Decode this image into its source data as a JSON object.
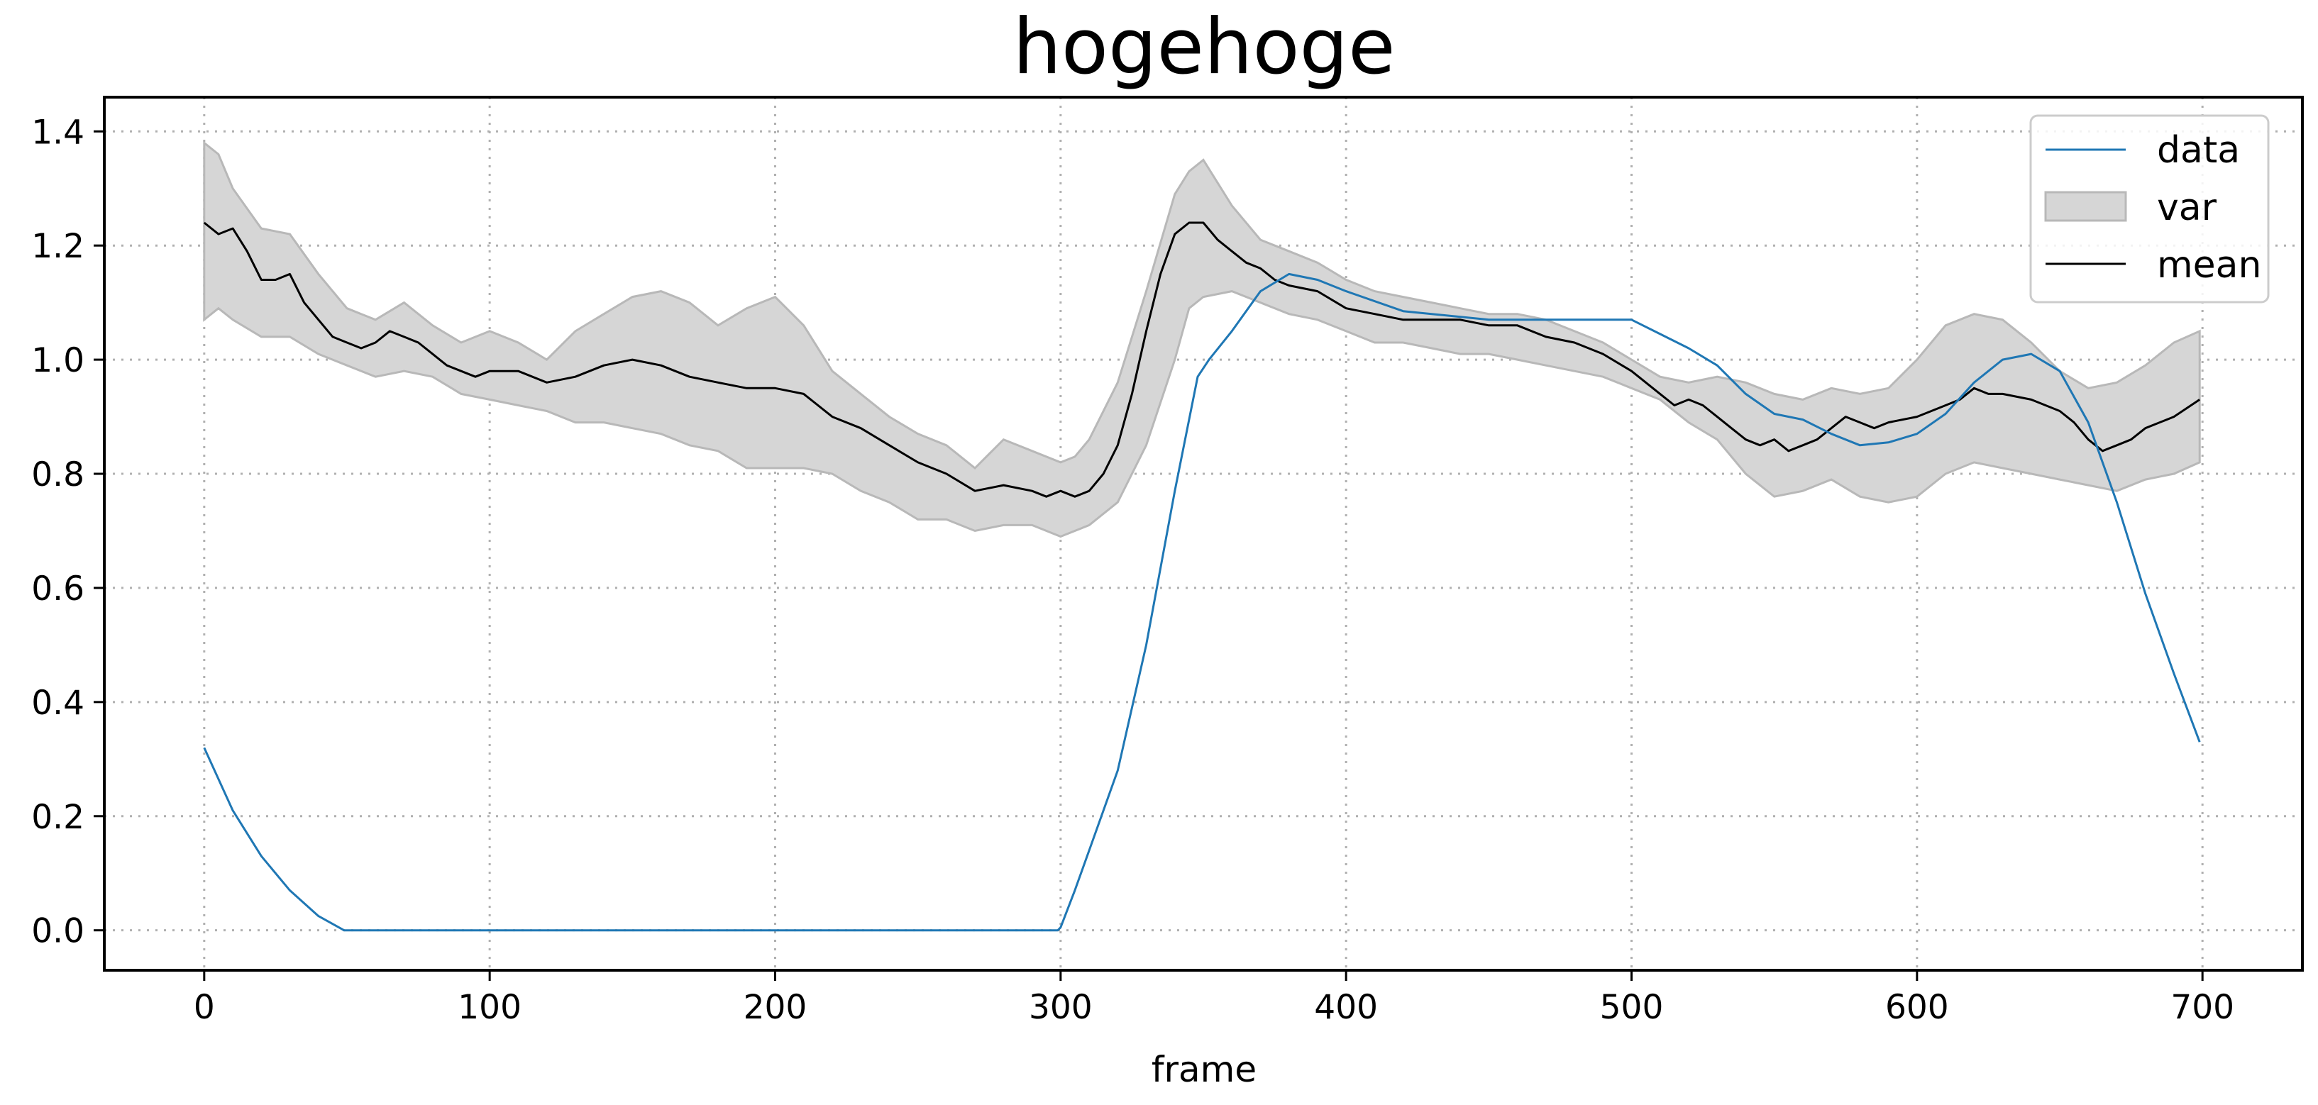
{
  "chart_data": {
    "type": "line",
    "title": "hogehoge",
    "xlabel": "frame",
    "ylabel": "",
    "xlim": [
      -35,
      735
    ],
    "ylim": [
      -0.07,
      1.46
    ],
    "xticks": [
      0,
      100,
      200,
      300,
      400,
      500,
      600,
      700
    ],
    "yticks": [
      0.0,
      0.2,
      0.4,
      0.6,
      0.8,
      1.0,
      1.2,
      1.4
    ],
    "xtick_labels": [
      "0",
      "100",
      "200",
      "300",
      "400",
      "500",
      "600",
      "700"
    ],
    "ytick_labels": [
      "0.0",
      "0.2",
      "0.4",
      "0.6",
      "0.8",
      "1.0",
      "1.2",
      "1.4"
    ],
    "grid": true,
    "legend_position": "top-right",
    "legend": [
      "data",
      "var",
      "mean"
    ],
    "colors": {
      "data": "#1f77b4",
      "var_fill": "#d6d6d6",
      "var_edge": "#b8b8b8",
      "mean": "#000000"
    },
    "series": [
      {
        "name": "data",
        "x": [
          0,
          10,
          20,
          30,
          40,
          49,
          50,
          100,
          150,
          200,
          250,
          299,
          300,
          305,
          310,
          320,
          330,
          340,
          348,
          352,
          360,
          370,
          380,
          390,
          400,
          420,
          450,
          480,
          500,
          510,
          520,
          530,
          540,
          550,
          560,
          570,
          580,
          590,
          600,
          610,
          620,
          630,
          640,
          650,
          660,
          670,
          680,
          690,
          699
        ],
        "y": [
          0.32,
          0.21,
          0.13,
          0.07,
          0.025,
          0.0,
          0.0,
          0.0,
          0.0,
          0.0,
          0.0,
          0.0,
          0.005,
          0.07,
          0.14,
          0.28,
          0.5,
          0.77,
          0.97,
          1.0,
          1.05,
          1.12,
          1.15,
          1.14,
          1.12,
          1.085,
          1.07,
          1.07,
          1.07,
          1.045,
          1.02,
          0.99,
          0.94,
          0.905,
          0.895,
          0.87,
          0.85,
          0.855,
          0.87,
          0.905,
          0.96,
          1.0,
          1.01,
          0.98,
          0.89,
          0.75,
          0.59,
          0.45,
          0.33
        ]
      },
      {
        "name": "mean",
        "x": [
          0,
          5,
          10,
          15,
          20,
          25,
          30,
          35,
          40,
          45,
          50,
          55,
          60,
          65,
          70,
          75,
          80,
          85,
          90,
          95,
          100,
          110,
          120,
          130,
          140,
          150,
          160,
          170,
          180,
          190,
          200,
          210,
          220,
          230,
          240,
          250,
          260,
          270,
          280,
          290,
          295,
          300,
          305,
          310,
          315,
          320,
          325,
          330,
          335,
          340,
          345,
          350,
          355,
          360,
          365,
          370,
          375,
          380,
          390,
          400,
          410,
          420,
          430,
          440,
          450,
          460,
          470,
          480,
          490,
          500,
          505,
          510,
          515,
          520,
          525,
          530,
          535,
          540,
          545,
          550,
          555,
          560,
          565,
          570,
          575,
          580,
          585,
          590,
          600,
          610,
          615,
          620,
          625,
          630,
          640,
          650,
          655,
          660,
          665,
          670,
          675,
          680,
          690,
          699
        ],
        "y": [
          1.24,
          1.22,
          1.23,
          1.19,
          1.14,
          1.14,
          1.15,
          1.1,
          1.07,
          1.04,
          1.03,
          1.02,
          1.03,
          1.05,
          1.04,
          1.03,
          1.01,
          0.99,
          0.98,
          0.97,
          0.98,
          0.98,
          0.96,
          0.97,
          0.99,
          1.0,
          0.99,
          0.97,
          0.96,
          0.95,
          0.95,
          0.94,
          0.9,
          0.88,
          0.85,
          0.82,
          0.8,
          0.77,
          0.78,
          0.77,
          0.76,
          0.77,
          0.76,
          0.77,
          0.8,
          0.85,
          0.94,
          1.05,
          1.15,
          1.22,
          1.24,
          1.24,
          1.21,
          1.19,
          1.17,
          1.16,
          1.14,
          1.13,
          1.12,
          1.09,
          1.08,
          1.07,
          1.07,
          1.07,
          1.06,
          1.06,
          1.04,
          1.03,
          1.01,
          0.98,
          0.96,
          0.94,
          0.92,
          0.93,
          0.92,
          0.9,
          0.88,
          0.86,
          0.85,
          0.86,
          0.84,
          0.85,
          0.86,
          0.88,
          0.9,
          0.89,
          0.88,
          0.89,
          0.9,
          0.92,
          0.93,
          0.95,
          0.94,
          0.94,
          0.93,
          0.91,
          0.89,
          0.86,
          0.84,
          0.85,
          0.86,
          0.88,
          0.9,
          0.93
        ]
      }
    ],
    "band": {
      "name": "var",
      "x": [
        0,
        5,
        10,
        20,
        30,
        40,
        50,
        60,
        70,
        80,
        90,
        100,
        110,
        120,
        130,
        140,
        150,
        160,
        170,
        180,
        190,
        200,
        210,
        220,
        230,
        240,
        250,
        260,
        270,
        280,
        290,
        300,
        305,
        310,
        320,
        330,
        340,
        345,
        350,
        360,
        370,
        380,
        390,
        400,
        410,
        420,
        430,
        440,
        450,
        460,
        470,
        480,
        490,
        500,
        510,
        520,
        530,
        540,
        550,
        560,
        570,
        580,
        590,
        600,
        610,
        620,
        630,
        640,
        650,
        660,
        670,
        680,
        690,
        699
      ],
      "upper": [
        1.38,
        1.36,
        1.3,
        1.23,
        1.22,
        1.15,
        1.09,
        1.07,
        1.1,
        1.06,
        1.03,
        1.05,
        1.03,
        1.0,
        1.05,
        1.08,
        1.11,
        1.12,
        1.1,
        1.06,
        1.09,
        1.11,
        1.06,
        0.98,
        0.94,
        0.9,
        0.87,
        0.85,
        0.81,
        0.86,
        0.84,
        0.82,
        0.83,
        0.86,
        0.96,
        1.12,
        1.29,
        1.33,
        1.35,
        1.27,
        1.21,
        1.19,
        1.17,
        1.14,
        1.12,
        1.11,
        1.1,
        1.09,
        1.08,
        1.08,
        1.07,
        1.05,
        1.03,
        1.0,
        0.97,
        0.96,
        0.97,
        0.96,
        0.94,
        0.93,
        0.95,
        0.94,
        0.95,
        1.0,
        1.06,
        1.08,
        1.07,
        1.03,
        0.98,
        0.95,
        0.96,
        0.99,
        1.03,
        1.05
      ],
      "lower": [
        1.07,
        1.09,
        1.07,
        1.04,
        1.04,
        1.01,
        0.99,
        0.97,
        0.98,
        0.97,
        0.94,
        0.93,
        0.92,
        0.91,
        0.89,
        0.89,
        0.88,
        0.87,
        0.85,
        0.84,
        0.81,
        0.81,
        0.81,
        0.8,
        0.77,
        0.75,
        0.72,
        0.72,
        0.7,
        0.71,
        0.71,
        0.69,
        0.7,
        0.71,
        0.75,
        0.85,
        1.0,
        1.09,
        1.11,
        1.12,
        1.1,
        1.08,
        1.07,
        1.05,
        1.03,
        1.03,
        1.02,
        1.01,
        1.01,
        1.0,
        0.99,
        0.98,
        0.97,
        0.95,
        0.93,
        0.89,
        0.86,
        0.8,
        0.76,
        0.77,
        0.79,
        0.76,
        0.75,
        0.76,
        0.8,
        0.82,
        0.81,
        0.8,
        0.79,
        0.78,
        0.77,
        0.79,
        0.8,
        0.82
      ]
    }
  }
}
